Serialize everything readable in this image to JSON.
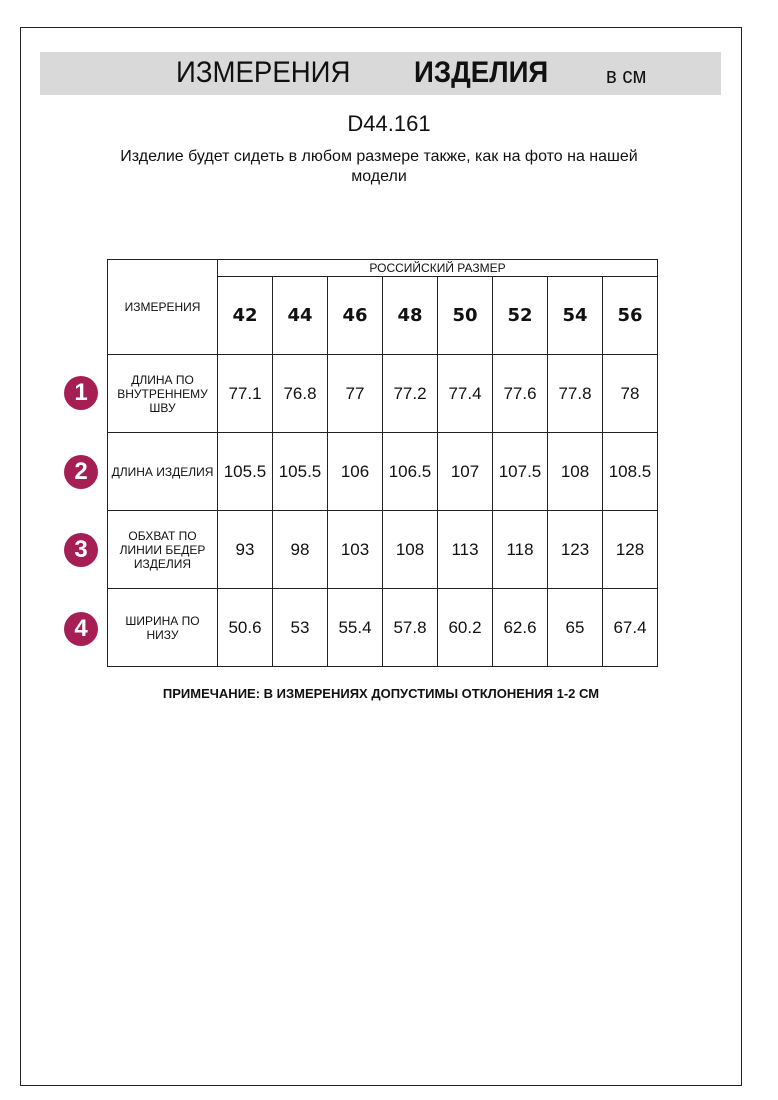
{
  "header": {
    "title_light": "ИЗМЕРЕНИЯ",
    "title_bold": "ИЗДЕЛИЯ",
    "unit": "в см"
  },
  "product_code": "D44.161",
  "subtitle": "Изделие будет сидеть в любом размере также, как на фото на нашей модели",
  "table": {
    "measure_header": "ИЗМЕРЕНИЯ",
    "size_group_header": "РОССИЙСКИЙ РАЗМЕР",
    "sizes": [
      "42",
      "44",
      "46",
      "48",
      "50",
      "52",
      "54",
      "56"
    ],
    "rows": [
      {
        "num": "1",
        "label": "ДЛИНА ПО ВНУТРЕННЕМУ ШВУ",
        "values": [
          "77.1",
          "76.8",
          "77",
          "77.2",
          "77.4",
          "77.6",
          "77.8",
          "78"
        ]
      },
      {
        "num": "2",
        "label": "ДЛИНА ИЗДЕЛИЯ",
        "values": [
          "105.5",
          "105.5",
          "106",
          "106.5",
          "107",
          "107.5",
          "108",
          "108.5"
        ]
      },
      {
        "num": "3",
        "label": "ОБХВАТ ПО ЛИНИИ БЕДЕР ИЗДЕЛИЯ",
        "values": [
          "93",
          "98",
          "103",
          "108",
          "113",
          "118",
          "123",
          "128"
        ]
      },
      {
        "num": "4",
        "label": "ШИРИНА ПО НИЗУ",
        "values": [
          "50.6",
          "53",
          "55.4",
          "57.8",
          "60.2",
          "62.6",
          "65",
          "67.4"
        ]
      }
    ]
  },
  "note": "ПРИМЕЧАНИЕ: В ИЗМЕРЕНИЯХ ДОПУСТИМЫ ОТКЛОНЕНИЯ 1-2 СМ",
  "colors": {
    "badge": "#a51f55",
    "banner": "#d9d9d9"
  }
}
